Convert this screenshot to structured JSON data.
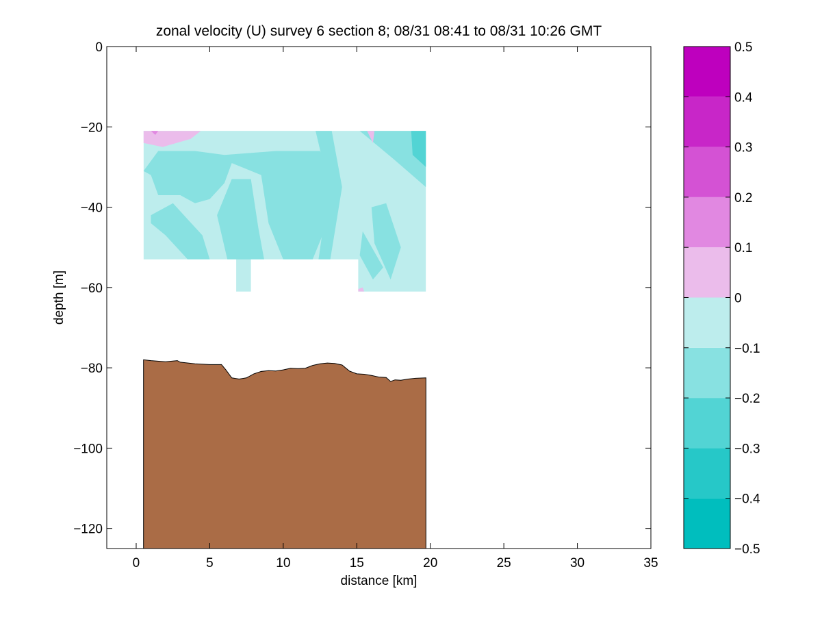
{
  "chart_data": {
    "type": "contour-section",
    "title": "zonal velocity (U) survey 6 section 8; 08/31 08:41 to 08/31 10:26 GMT",
    "xlabel": "distance [km]",
    "ylabel": "depth [m]",
    "xlim": [
      -2,
      35
    ],
    "ylim": [
      -125,
      0
    ],
    "x_ticks": [
      0,
      5,
      10,
      15,
      20,
      25,
      30,
      35
    ],
    "y_ticks": [
      0,
      -20,
      -40,
      -60,
      -80,
      -100,
      -120
    ],
    "grid": false,
    "data_extent": {
      "x_start_km": 0.5,
      "x_end_km": 19.7,
      "top_depth_m": -21,
      "bottom_depth_m": -53,
      "deep_columns": [
        {
          "x_from_km": 6.8,
          "x_to_km": 7.8,
          "bottom_depth_m": -61
        },
        {
          "x_from_km": 15.1,
          "x_to_km": 19.7,
          "bottom_depth_m": -61
        }
      ]
    },
    "background_class": -0.1,
    "regions": [
      {
        "value": -0.15,
        "points": [
          [
            0.5,
            -31
          ],
          [
            1.5,
            -26
          ],
          [
            4,
            -26
          ],
          [
            6,
            -27
          ],
          [
            9.5,
            -26
          ],
          [
            12.5,
            -26
          ],
          [
            13.5,
            -34
          ],
          [
            13,
            -44
          ],
          [
            12,
            -53
          ],
          [
            10,
            -53
          ],
          [
            9,
            -44
          ],
          [
            8.5,
            -32
          ],
          [
            6.5,
            -29
          ],
          [
            6,
            -34
          ],
          [
            5,
            -38
          ],
          [
            4,
            -39
          ],
          [
            3,
            -37
          ],
          [
            1.5,
            -37
          ],
          [
            1,
            -32
          ]
        ]
      },
      {
        "value": -0.15,
        "points": [
          [
            1,
            -42
          ],
          [
            2.5,
            -39
          ],
          [
            3.5,
            -43
          ],
          [
            4.5,
            -47
          ],
          [
            5,
            -53
          ],
          [
            3.5,
            -53
          ],
          [
            2,
            -47
          ],
          [
            1,
            -44
          ]
        ]
      },
      {
        "value": -0.15,
        "points": [
          [
            5.5,
            -42
          ],
          [
            6.5,
            -33
          ],
          [
            7.8,
            -33
          ],
          [
            8.3,
            -45
          ],
          [
            8.7,
            -53
          ],
          [
            6.2,
            -53
          ]
        ]
      },
      {
        "value": -0.15,
        "points": [
          [
            12.2,
            -21
          ],
          [
            13.3,
            -21
          ],
          [
            14,
            -35
          ],
          [
            13.2,
            -53
          ],
          [
            12.4,
            -53
          ],
          [
            13.1,
            -35
          ]
        ]
      },
      {
        "value": -0.15,
        "points": [
          [
            14.3,
            -21
          ],
          [
            15.2,
            -21
          ],
          [
            17.5,
            -28
          ],
          [
            19.7,
            -35
          ],
          [
            19.7,
            -21
          ]
        ]
      },
      {
        "value": -0.15,
        "points": [
          [
            16,
            -40
          ],
          [
            17,
            -39
          ],
          [
            18,
            -50
          ],
          [
            17.3,
            -58
          ],
          [
            16.2,
            -49
          ]
        ]
      },
      {
        "value": -0.15,
        "points": [
          [
            15.4,
            -46
          ],
          [
            16.8,
            -55
          ],
          [
            16.1,
            -58
          ],
          [
            15.2,
            -52
          ]
        ]
      },
      {
        "value": -0.25,
        "points": [
          [
            18.7,
            -21
          ],
          [
            19.7,
            -21
          ],
          [
            19.7,
            -30
          ],
          [
            18.8,
            -27
          ]
        ]
      },
      {
        "value": 0.05,
        "points": [
          [
            0.5,
            -21
          ],
          [
            4.4,
            -21
          ],
          [
            3.7,
            -23
          ],
          [
            1.8,
            -25
          ],
          [
            0.5,
            -24
          ]
        ]
      },
      {
        "value": 0.05,
        "points": [
          [
            15.7,
            -21
          ],
          [
            16.2,
            -21
          ],
          [
            16.1,
            -24
          ]
        ]
      },
      {
        "value": 0.05,
        "points": [
          [
            15,
            -60.5
          ],
          [
            15.4,
            -60
          ],
          [
            15.5,
            -61
          ],
          [
            15,
            -61
          ]
        ]
      },
      {
        "value": 0.15,
        "points": [
          [
            1,
            -21
          ],
          [
            1.5,
            -21
          ],
          [
            1.3,
            -22
          ]
        ]
      }
    ],
    "colorbar": {
      "min": -0.5,
      "max": 0.5,
      "tick_values": [
        0.5,
        0.4,
        0.3,
        0.2,
        0.1,
        0,
        -0.1,
        -0.2,
        -0.3,
        -0.4,
        -0.5
      ],
      "tick_labels": [
        "0.5",
        "0.4",
        "0.3",
        "0.2",
        "0.1",
        "0",
        "−0.1",
        "−0.2",
        "−0.3",
        "−0.4",
        "−0.5"
      ],
      "bands": [
        {
          "from": -0.5,
          "to": -0.4,
          "color": "#00bebe"
        },
        {
          "from": -0.4,
          "to": -0.3,
          "color": "#26c8c8"
        },
        {
          "from": -0.3,
          "to": -0.2,
          "color": "#52d4d4"
        },
        {
          "from": -0.2,
          "to": -0.1,
          "color": "#88e1e1"
        },
        {
          "from": -0.1,
          "to": 0,
          "color": "#bdeded"
        },
        {
          "from": 0,
          "to": 0.1,
          "color": "#ebbceb"
        },
        {
          "from": 0.1,
          "to": 0.2,
          "color": "#e188e1"
        },
        {
          "from": 0.2,
          "to": 0.3,
          "color": "#d452d4"
        },
        {
          "from": 0.3,
          "to": 0.4,
          "color": "#c826c8"
        },
        {
          "from": 0.4,
          "to": 0.5,
          "color": "#be00be"
        }
      ]
    },
    "bathymetry": {
      "color": "#aa6c46",
      "x": [
        0.5,
        1,
        2,
        2.8,
        3,
        4,
        5,
        5.8,
        6.1,
        6.5,
        7,
        7.5,
        8,
        8.5,
        9,
        9.5,
        10,
        10.5,
        11,
        11.5,
        12,
        12.5,
        13,
        13.5,
        14,
        14.5,
        15,
        15.5,
        16,
        16.5,
        17,
        17.3,
        17.6,
        18,
        18.5,
        19,
        19.7
      ],
      "depth": [
        -78,
        -78.2,
        -78.5,
        -78.2,
        -78.6,
        -79,
        -79.2,
        -79.2,
        -80.5,
        -82.5,
        -82.8,
        -82.5,
        -81.5,
        -80.9,
        -80.7,
        -80.8,
        -80.5,
        -80.1,
        -80.2,
        -80.1,
        -79.4,
        -79,
        -78.8,
        -78.9,
        -79.3,
        -80.8,
        -81.5,
        -81.6,
        -81.9,
        -82.3,
        -82.4,
        -83.4,
        -83,
        -83.1,
        -82.8,
        -82.6,
        -82.5
      ]
    }
  }
}
